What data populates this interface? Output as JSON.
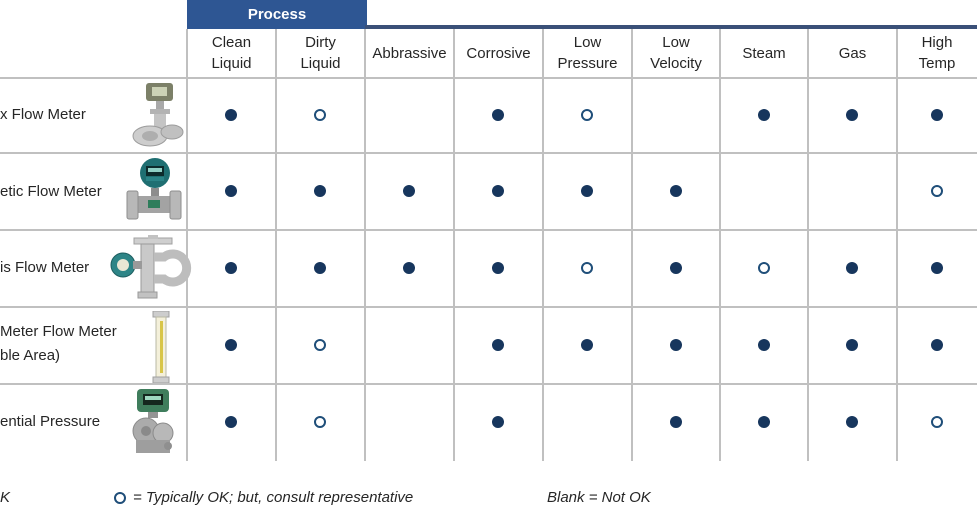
{
  "banner": {
    "label": "Process"
  },
  "columns": [
    {
      "line1": "Clean",
      "line2": "Liquid"
    },
    {
      "line1": "Dirty",
      "line2": "Liquid"
    },
    {
      "line1": "Abbrassive",
      "line2": ""
    },
    {
      "line1": "Corrosive",
      "line2": ""
    },
    {
      "line1": "Low",
      "line2": "Pressure"
    },
    {
      "line1": "Low",
      "line2": "Velocity"
    },
    {
      "line1": "Steam",
      "line2": ""
    },
    {
      "line1": "Gas",
      "line2": ""
    },
    {
      "line1": "High",
      "line2": "Temp"
    }
  ],
  "rows": [
    {
      "label_line1": "x Flow Meter",
      "label_line2": "",
      "meter_icon": "vortex-flow-meter-image",
      "cells": [
        "filled",
        "open",
        "blank",
        "filled",
        "open",
        "blank",
        "filled",
        "filled",
        "filled"
      ]
    },
    {
      "label_line1": "etic Flow Meter",
      "label_line2": "",
      "meter_icon": "magnetic-flow-meter-image",
      "cells": [
        "filled",
        "filled",
        "filled",
        "filled",
        "filled",
        "filled",
        "blank",
        "blank",
        "open"
      ]
    },
    {
      "label_line1": "is Flow Meter",
      "label_line2": "",
      "meter_icon": "coriolis-flow-meter-image",
      "cells": [
        "filled",
        "filled",
        "filled",
        "filled",
        "open",
        "filled",
        "open",
        "filled",
        "filled"
      ]
    },
    {
      "label_line1": "Meter Flow Meter",
      "label_line2": "ble Area)",
      "meter_icon": "rotameter-image",
      "cells": [
        "filled",
        "open",
        "blank",
        "filled",
        "filled",
        "filled",
        "filled",
        "filled",
        "filled"
      ]
    },
    {
      "label_line1": "ential Pressure",
      "label_line2": "",
      "meter_icon": "dp-transmitter-image",
      "cells": [
        "filled",
        "open",
        "blank",
        "filled",
        "blank",
        "filled",
        "filled",
        "filled",
        "open"
      ]
    }
  ],
  "legend": {
    "ok_cut_text": "K",
    "typically_ok_text": "= Typically OK; but, consult representative",
    "blank_text": "Blank = Not OK"
  },
  "colors": {
    "banner_blue": "#2E5693",
    "rule_blue": "#3A5078",
    "dot_navy": "#17365D",
    "open_ring_blue": "#1F4E79",
    "grid_gray": "#C0C0C0"
  }
}
